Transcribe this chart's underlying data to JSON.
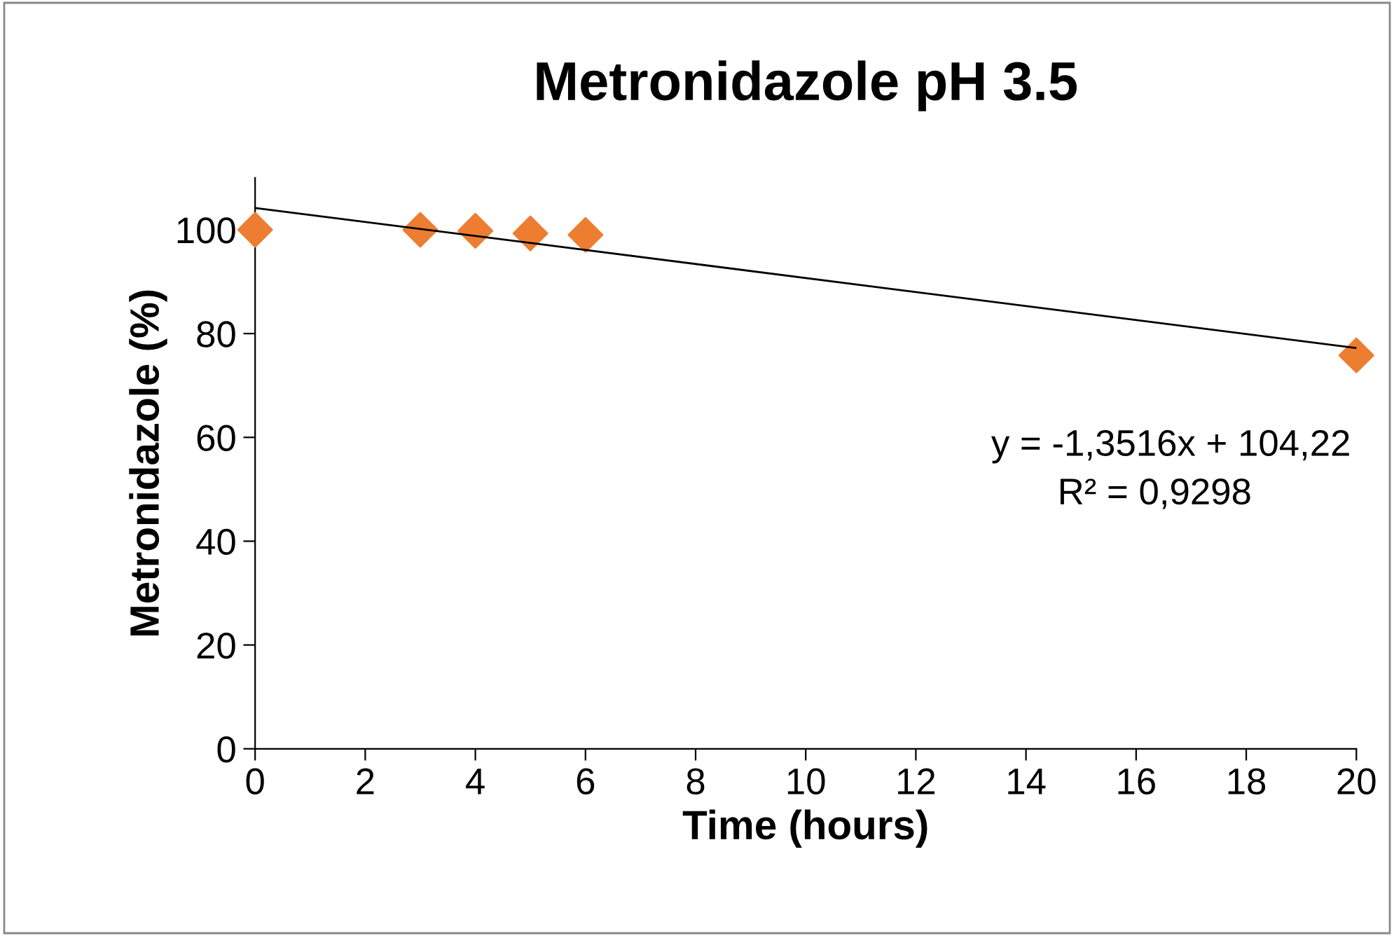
{
  "chart_data": {
    "type": "scatter",
    "title": "Metronidazole pH 3.5",
    "xlabel": "Time (hours)",
    "ylabel": "Metronidazole (%)",
    "series": [
      {
        "color": "#ed7d31",
        "marker": "diamond",
        "x": [
          0,
          3,
          4,
          5,
          6,
          20
        ],
        "values": [
          100,
          100,
          99.8,
          99.3,
          99,
          75.8
        ]
      },
      {
        "type": "line",
        "color": "#000000",
        "marker": "none",
        "x": [
          0,
          20
        ],
        "values": [
          104.2,
          77.2
        ]
      }
    ],
    "xlim": [
      0,
      20
    ],
    "xticks": [
      0,
      2,
      4,
      6,
      8,
      10,
      12,
      14,
      16,
      18,
      20
    ],
    "ylim": [
      0,
      110
    ],
    "yticks": [
      0,
      20,
      40,
      60,
      80,
      100
    ],
    "grid": false,
    "legend": false,
    "annotations": [
      "y = -1,3516x + 104,22",
      "R² = 0,9298"
    ]
  }
}
